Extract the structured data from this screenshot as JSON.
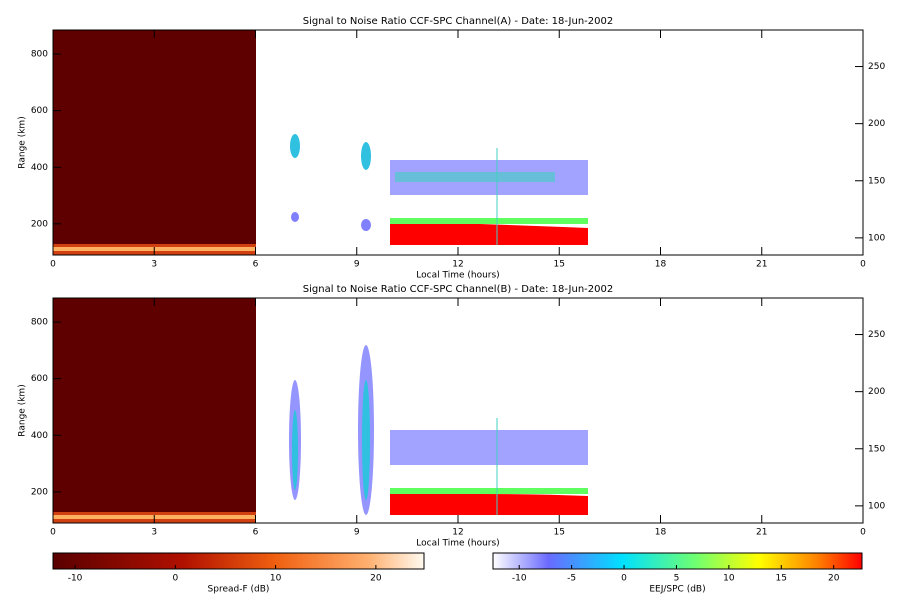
{
  "chart_data": [
    {
      "type": "heatmap",
      "title": "Signal to Noise Ratio CCF-SPC Channel(A) - Date: 18-Jun-2002",
      "xlabel": "Local Time (hours)",
      "ylabel": "Range (km)",
      "xlim": [
        0,
        24
      ],
      "xticks": [
        0,
        3,
        6,
        9,
        12,
        15,
        18,
        21,
        {
          "value": 24,
          "label": "0"
        }
      ],
      "ylim": [
        90,
        885
      ],
      "yticks": [
        200,
        400,
        600,
        800
      ],
      "y2lim": [
        85,
        282
      ],
      "y2ticks": [
        100,
        150,
        200,
        250
      ]
    },
    {
      "type": "heatmap",
      "title": "Signal to Noise Ratio CCF-SPC Channel(B) - Date: 18-Jun-2002",
      "xlabel": "Local Time (hours)",
      "ylabel": "Range (km)",
      "xlim": [
        0,
        24
      ],
      "xticks": [
        0,
        3,
        6,
        9,
        12,
        15,
        18,
        21,
        {
          "value": 24,
          "label": "0"
        }
      ],
      "ylim": [
        90,
        885
      ],
      "yticks": [
        200,
        400,
        600,
        800
      ],
      "y2lim": [
        85,
        282
      ],
      "y2ticks": [
        100,
        150,
        200,
        250
      ]
    }
  ],
  "colorbars": [
    {
      "label": "Spread-F (dB)",
      "lim": [
        -12.2,
        24.8
      ],
      "ticks": [
        -10,
        0,
        10,
        20
      ]
    },
    {
      "label": "EEJ/SPC (dB)",
      "lim": [
        -12.5,
        22.7
      ],
      "ticks": [
        -10,
        -5,
        0,
        5,
        10,
        15,
        20
      ]
    }
  ]
}
